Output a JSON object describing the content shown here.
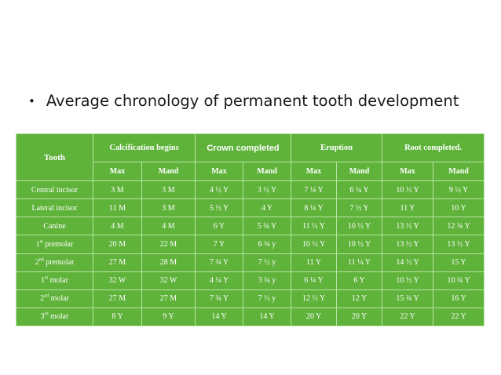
{
  "bullet": {
    "text": "Average chronology of permanent tooth development"
  },
  "colors": {
    "table_bg": "#5fb33a",
    "grid_line": "#b9e3a3",
    "text": "#ffffff"
  },
  "table": {
    "tooth_header": "Tooth",
    "groups": [
      "Calcification begins",
      "Crown completed",
      "Eruption",
      "Root completed."
    ],
    "subheaders": [
      "Max",
      "Mand",
      "Max",
      "Mand",
      "Max",
      "Mand",
      "Max",
      "Mand"
    ],
    "rows": [
      {
        "tooth": "Central incisor",
        "tooth_sup": "",
        "tooth_rest": "",
        "cells": [
          "3 M",
          "3 M",
          "4 ½ Y",
          "3 ½ Y",
          "7 ¼ Y",
          "6 ¼ Y",
          "10 ½ Y",
          "9 ½ Y"
        ]
      },
      {
        "tooth": "Lateral incisor",
        "tooth_sup": "",
        "tooth_rest": "",
        "cells": [
          "11 M",
          "3 M",
          "5 ½ Y",
          "4 Y",
          "8 ¼ Y",
          "7 ½ Y",
          "11 Y",
          "10 Y"
        ]
      },
      {
        "tooth": "Canine",
        "tooth_sup": "",
        "tooth_rest": "",
        "cells": [
          "4 M",
          "4 M",
          "6 Y",
          "5 ¾ Y",
          "11 ½ Y",
          "10 ½ Y",
          "13 ½ Y",
          "12 ¾ Y"
        ]
      },
      {
        "tooth": "1",
        "tooth_sup": "st",
        "tooth_rest": " premolar",
        "cells": [
          "20 M",
          "22 M",
          "7 Y",
          "6 ¾ y",
          "10 ½ Y",
          "10 ½ Y",
          "13 ½ Y",
          "13 ½ Y"
        ]
      },
      {
        "tooth": "2",
        "tooth_sup": "nd",
        "tooth_rest": " premolar",
        "cells": [
          "27 M",
          "28 M",
          "7 ¾ Y",
          "7 ½ y",
          "11 Y",
          "11 ¼ Y",
          "14 ½ Y",
          "15 Y"
        ]
      },
      {
        "tooth": "1",
        "tooth_sup": "st",
        "tooth_rest": " molar",
        "cells": [
          "32 W",
          "32 W",
          "4 ¼ Y",
          "3 ¾ y",
          "6 ¼ Y",
          "6 Y",
          "10 ½ Y",
          "10 ¾ Y"
        ]
      },
      {
        "tooth": "2",
        "tooth_sup": "nd",
        "tooth_rest": " molar",
        "cells": [
          "27 M",
          "27 M",
          "7 ¾ Y",
          "7 ½ y",
          "12 ½ Y",
          "12 Y",
          "15 ¾ Y",
          "16 Y"
        ]
      },
      {
        "tooth": "3",
        "tooth_sup": "rd",
        "tooth_rest": " molar",
        "cells": [
          "8 Y",
          "9 Y",
          "14 Y",
          "14 Y",
          "20 Y",
          "20 Y",
          "22 Y",
          "22 Y"
        ]
      }
    ]
  }
}
